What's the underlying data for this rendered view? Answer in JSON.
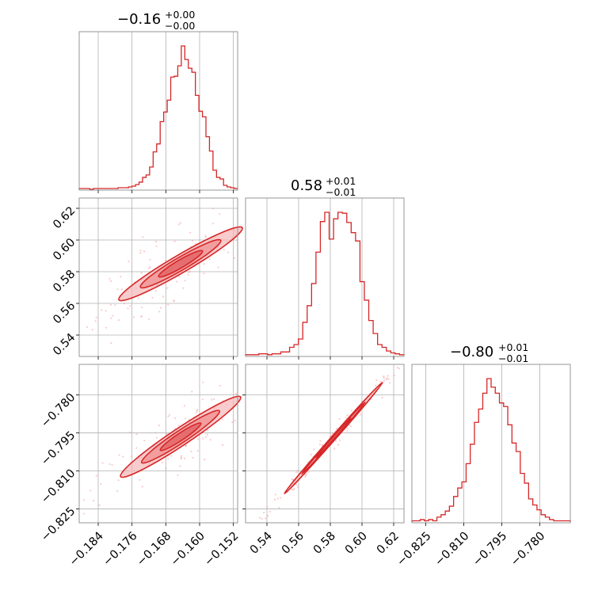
{
  "colors": {
    "accent": "#d62728",
    "grid": "#b0b0b0",
    "frame": "#8c8c8c",
    "fill": "#f5b5b6",
    "scatter": "#f2a0a2"
  },
  "titles": [
    {
      "main": "−0.16",
      "upper": "+0.00",
      "lower": "−0.00"
    },
    {
      "main": "0.58",
      "upper": "+0.01",
      "lower": "−0.01"
    },
    {
      "main": "−0.80",
      "upper": "+0.01",
      "lower": "−0.01"
    }
  ],
  "chart_data": {
    "type": "corner",
    "grid": true,
    "params": [
      {
        "range": [
          -0.1885,
          -0.151
        ],
        "ticks": [
          -0.184,
          -0.176,
          -0.168,
          -0.16,
          -0.152
        ],
        "tick_labels": [
          "−0.184",
          "−0.176",
          "−0.168",
          "−0.160",
          "−0.152"
        ]
      },
      {
        "range": [
          0.5265,
          0.6265
        ],
        "ticks": [
          0.54,
          0.56,
          0.58,
          0.6,
          0.62
        ],
        "tick_labels": [
          "0.54",
          "0.56",
          "0.58",
          "0.60",
          "0.62"
        ]
      },
      {
        "range": [
          -0.8305,
          -0.7679
        ],
        "ticks": [
          -0.825,
          -0.81,
          -0.795,
          -0.78
        ],
        "tick_labels": [
          "−0.825",
          "−0.810",
          "−0.795",
          "−0.780"
        ]
      }
    ],
    "histograms": [
      {
        "x_start": -0.1885,
        "x_end": -0.151,
        "counts": [
          1,
          1,
          1,
          0,
          1,
          1,
          1,
          1,
          1,
          1,
          1,
          2,
          2,
          2,
          3,
          4,
          6,
          9,
          15,
          18,
          28,
          47,
          57,
          85,
          97,
          112,
          141,
          142,
          155,
          180,
          163,
          152,
          147,
          118,
          98,
          91,
          66,
          48,
          24,
          15,
          13,
          5,
          3,
          2,
          1
        ]
      },
      {
        "x_start": 0.5265,
        "x_end": 0.6265,
        "counts": [
          1,
          1,
          1,
          2,
          2,
          1,
          2,
          2,
          4,
          4,
          9,
          12,
          18,
          36,
          54,
          78,
          112,
          145,
          155,
          126,
          148,
          155,
          154,
          144,
          133,
          124,
          80,
          60,
          38,
          24,
          12,
          9,
          5,
          3,
          2,
          1
        ]
      },
      {
        "x_start": -0.8305,
        "x_end": -0.7679,
        "counts": [
          1,
          1,
          2,
          1,
          2,
          1,
          4,
          6,
          9,
          13,
          21,
          28,
          33,
          48,
          64,
          82,
          93,
          106,
          118,
          111,
          106,
          98,
          95,
          80,
          65,
          58,
          40,
          32,
          19,
          14,
          10,
          6,
          4,
          2,
          1,
          1,
          1,
          1
        ]
      }
    ],
    "pairs": [
      {
        "x_param": 0,
        "y_param": 1,
        "slope": 1.56,
        "center": [
          -0.1645,
          0.585
        ],
        "contours": [
          {
            "half_length": 0.0146,
            "half_width": 0.0018,
            "fill": "#f5b5b6"
          },
          {
            "half_length": 0.0095,
            "half_width": 0.0013,
            "fill": "#ef8a8b"
          },
          {
            "half_length": 0.0052,
            "half_width": 0.0008,
            "fill": "#e05a5c"
          }
        ]
      },
      {
        "x_param": 0,
        "y_param": 2,
        "slope": 1.11,
        "center": [
          -0.1645,
          -0.7965
        ],
        "contours": [
          {
            "half_length": 0.0142,
            "half_width": 0.0017,
            "fill": "#f5b5b6"
          },
          {
            "half_length": 0.0092,
            "half_width": 0.0012,
            "fill": "#ef8a8b"
          },
          {
            "half_length": 0.0048,
            "half_width": 0.0007,
            "fill": "#e05a5c"
          }
        ]
      },
      {
        "x_param": 1,
        "y_param": 2,
        "slope": 0.71,
        "center": [
          0.582,
          -0.797
        ],
        "contours": [
          {
            "half_length": 0.031,
            "half_width": 0.0009,
            "fill": "#f5b5b6"
          },
          {
            "half_length": 0.02,
            "half_width": 0.0006,
            "fill": "#ef8a8b"
          },
          {
            "half_length": 0.011,
            "half_width": 0.0004,
            "fill": "#e05a5c"
          }
        ]
      }
    ]
  }
}
